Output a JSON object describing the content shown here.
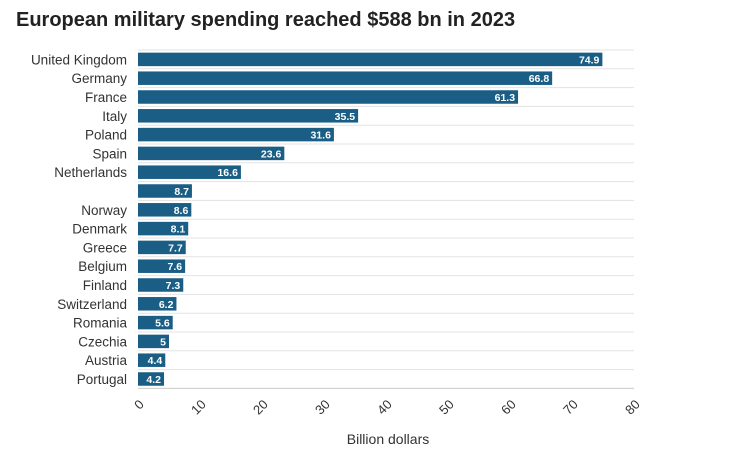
{
  "chart_data": {
    "type": "bar",
    "orientation": "horizontal",
    "title": "European military spending reached $588 bn in 2023",
    "xlabel": "Billion dollars",
    "ylabel": "",
    "xlim": [
      0,
      80
    ],
    "xticks": [
      "0",
      "10",
      "20",
      "30",
      "40",
      "50",
      "60",
      "70",
      "80"
    ],
    "grid": true,
    "bar_color": "#1a5e86",
    "categories": [
      "United Kingdom",
      "Germany",
      "France",
      "Italy",
      "Poland",
      "Spain",
      "Netherlands",
      "",
      "Norway",
      "Denmark",
      "Greece",
      "Belgium",
      "Finland",
      "Switzerland",
      "Romania",
      "Czechia",
      "Austria",
      "Portugal"
    ],
    "values": [
      74.9,
      66.8,
      61.3,
      35.5,
      31.6,
      23.6,
      16.6,
      8.7,
      8.6,
      8.1,
      7.7,
      7.6,
      7.3,
      6.2,
      5.6,
      5,
      4.4,
      4.2
    ],
    "value_labels": [
      "74.9",
      "66.8",
      "61.3",
      "35.5",
      "31.6",
      "23.6",
      "16.6",
      "8.7",
      "8.6",
      "8.1",
      "7.7",
      "7.6",
      "7.3",
      "6.2",
      "5.6",
      "5",
      "4.4",
      "4.2"
    ]
  }
}
